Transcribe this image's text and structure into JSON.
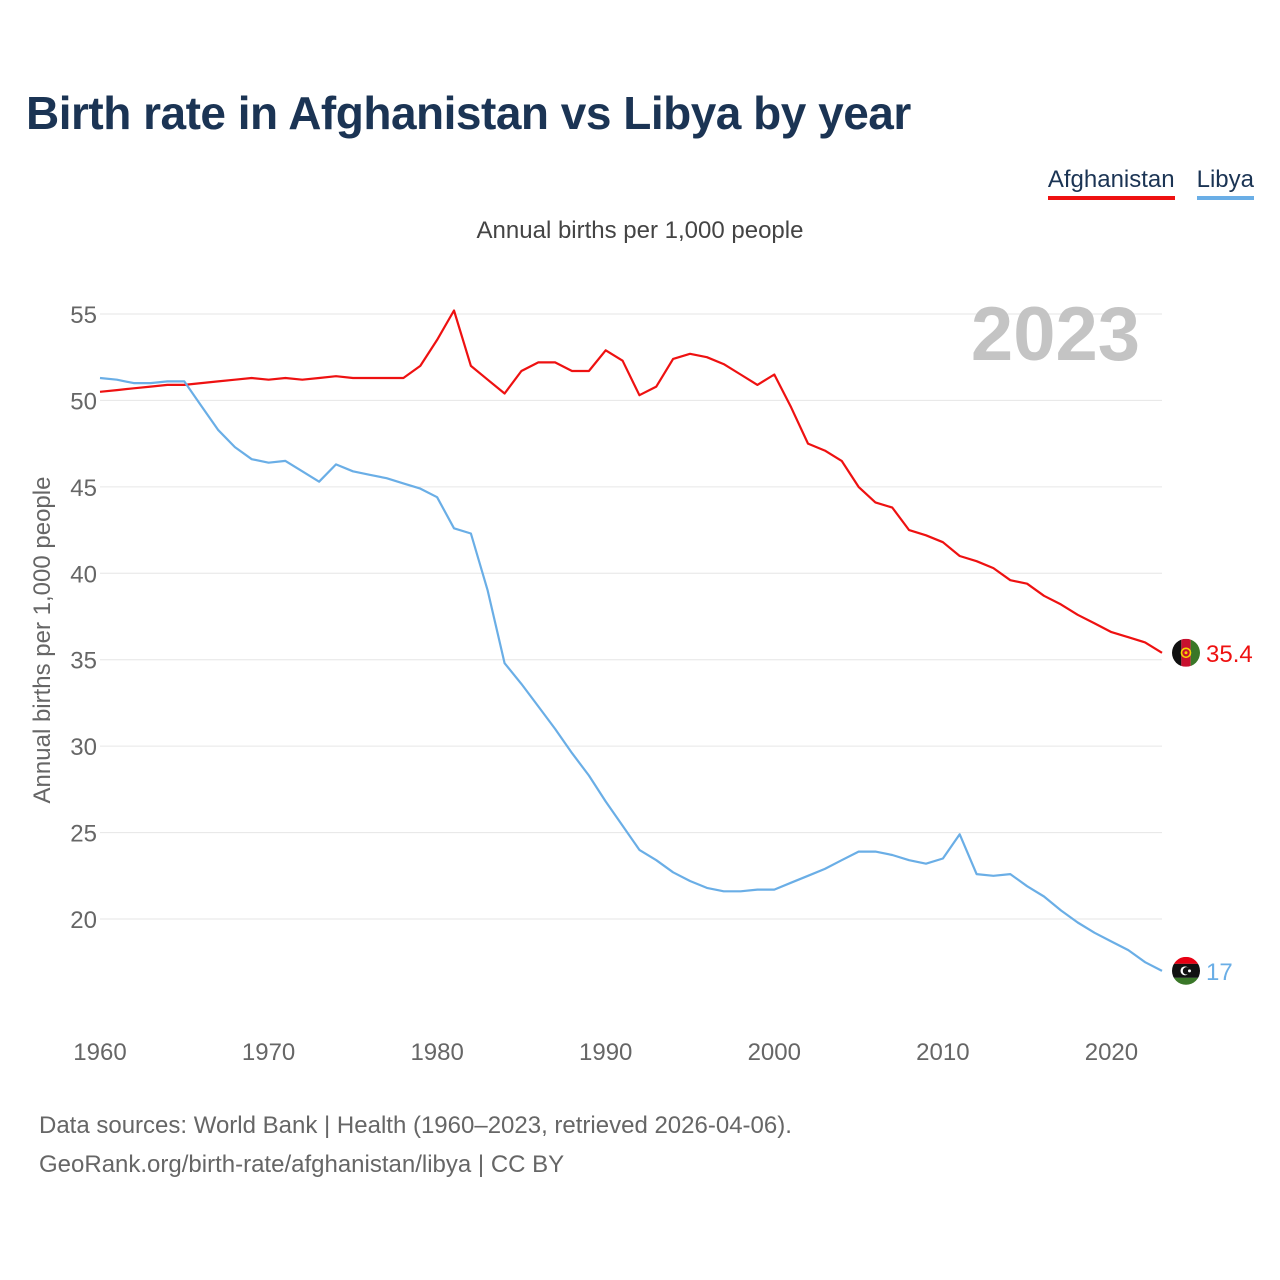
{
  "title": "Birth rate in Afghanistan vs Libya by year",
  "subtitle": "Annual births per 1,000 people",
  "legend": [
    {
      "name": "Afghanistan",
      "color": "#ee1111"
    },
    {
      "name": "Libya",
      "color": "#6aaee6"
    }
  ],
  "year_watermark": "2023",
  "source": {
    "line1": "Data sources: World Bank | Health (1960–2023, retrieved 2026-04-06).",
    "line2": "GeoRank.org/birth-rate/afghanistan/libya | CC BY"
  },
  "chart_data": {
    "type": "line",
    "title": "Birth rate in Afghanistan vs Libya by year",
    "xlabel": "",
    "ylabel": "Annual births per 1,000 people",
    "xlim": [
      1960,
      2023
    ],
    "ylim": [
      15,
      57
    ],
    "x_ticks": [
      1960,
      1970,
      1980,
      1990,
      2000,
      2010,
      2020
    ],
    "y_ticks": [
      20,
      25,
      30,
      35,
      40,
      45,
      50,
      55
    ],
    "grid": true,
    "x": [
      1960,
      1961,
      1962,
      1963,
      1964,
      1965,
      1966,
      1967,
      1968,
      1969,
      1970,
      1971,
      1972,
      1973,
      1974,
      1975,
      1976,
      1977,
      1978,
      1979,
      1980,
      1981,
      1982,
      1983,
      1984,
      1985,
      1986,
      1987,
      1988,
      1989,
      1990,
      1991,
      1992,
      1993,
      1994,
      1995,
      1996,
      1997,
      1998,
      1999,
      2000,
      2001,
      2002,
      2003,
      2004,
      2005,
      2006,
      2007,
      2008,
      2009,
      2010,
      2011,
      2012,
      2013,
      2014,
      2015,
      2016,
      2017,
      2018,
      2019,
      2020,
      2021,
      2022,
      2023
    ],
    "series": [
      {
        "name": "Afghanistan",
        "color": "#ee1111",
        "end_label": "35.4",
        "values": [
          50.5,
          50.6,
          50.7,
          50.8,
          50.9,
          50.9,
          51.0,
          51.1,
          51.2,
          51.3,
          51.2,
          51.3,
          51.2,
          51.3,
          51.4,
          51.3,
          51.3,
          51.3,
          51.3,
          52.0,
          53.5,
          55.2,
          52.0,
          51.2,
          50.4,
          51.7,
          52.2,
          52.2,
          51.7,
          51.7,
          52.9,
          52.3,
          50.3,
          50.8,
          52.4,
          52.7,
          52.5,
          52.1,
          51.5,
          50.9,
          51.5,
          49.6,
          47.5,
          47.1,
          46.5,
          45.0,
          44.1,
          43.8,
          42.5,
          42.2,
          41.8,
          41.0,
          40.7,
          40.3,
          39.6,
          39.4,
          38.7,
          38.2,
          37.6,
          37.1,
          36.6,
          36.3,
          36.0,
          35.4
        ]
      },
      {
        "name": "Libya",
        "color": "#6aaee6",
        "end_label": "17",
        "values": [
          51.3,
          51.2,
          51.0,
          51.0,
          51.1,
          51.1,
          49.7,
          48.3,
          47.3,
          46.6,
          46.4,
          46.5,
          45.9,
          45.3,
          46.3,
          45.9,
          45.7,
          45.5,
          45.2,
          44.9,
          44.4,
          42.6,
          42.3,
          39.0,
          34.8,
          33.6,
          32.3,
          31.0,
          29.6,
          28.3,
          26.8,
          25.4,
          24.0,
          23.4,
          22.7,
          22.2,
          21.8,
          21.6,
          21.6,
          21.7,
          21.7,
          22.1,
          22.5,
          22.9,
          23.4,
          23.9,
          23.9,
          23.7,
          23.4,
          23.2,
          23.5,
          24.9,
          22.6,
          22.5,
          22.6,
          21.9,
          21.3,
          20.5,
          19.8,
          19.2,
          18.7,
          18.2,
          17.5,
          17.0
        ]
      }
    ]
  }
}
